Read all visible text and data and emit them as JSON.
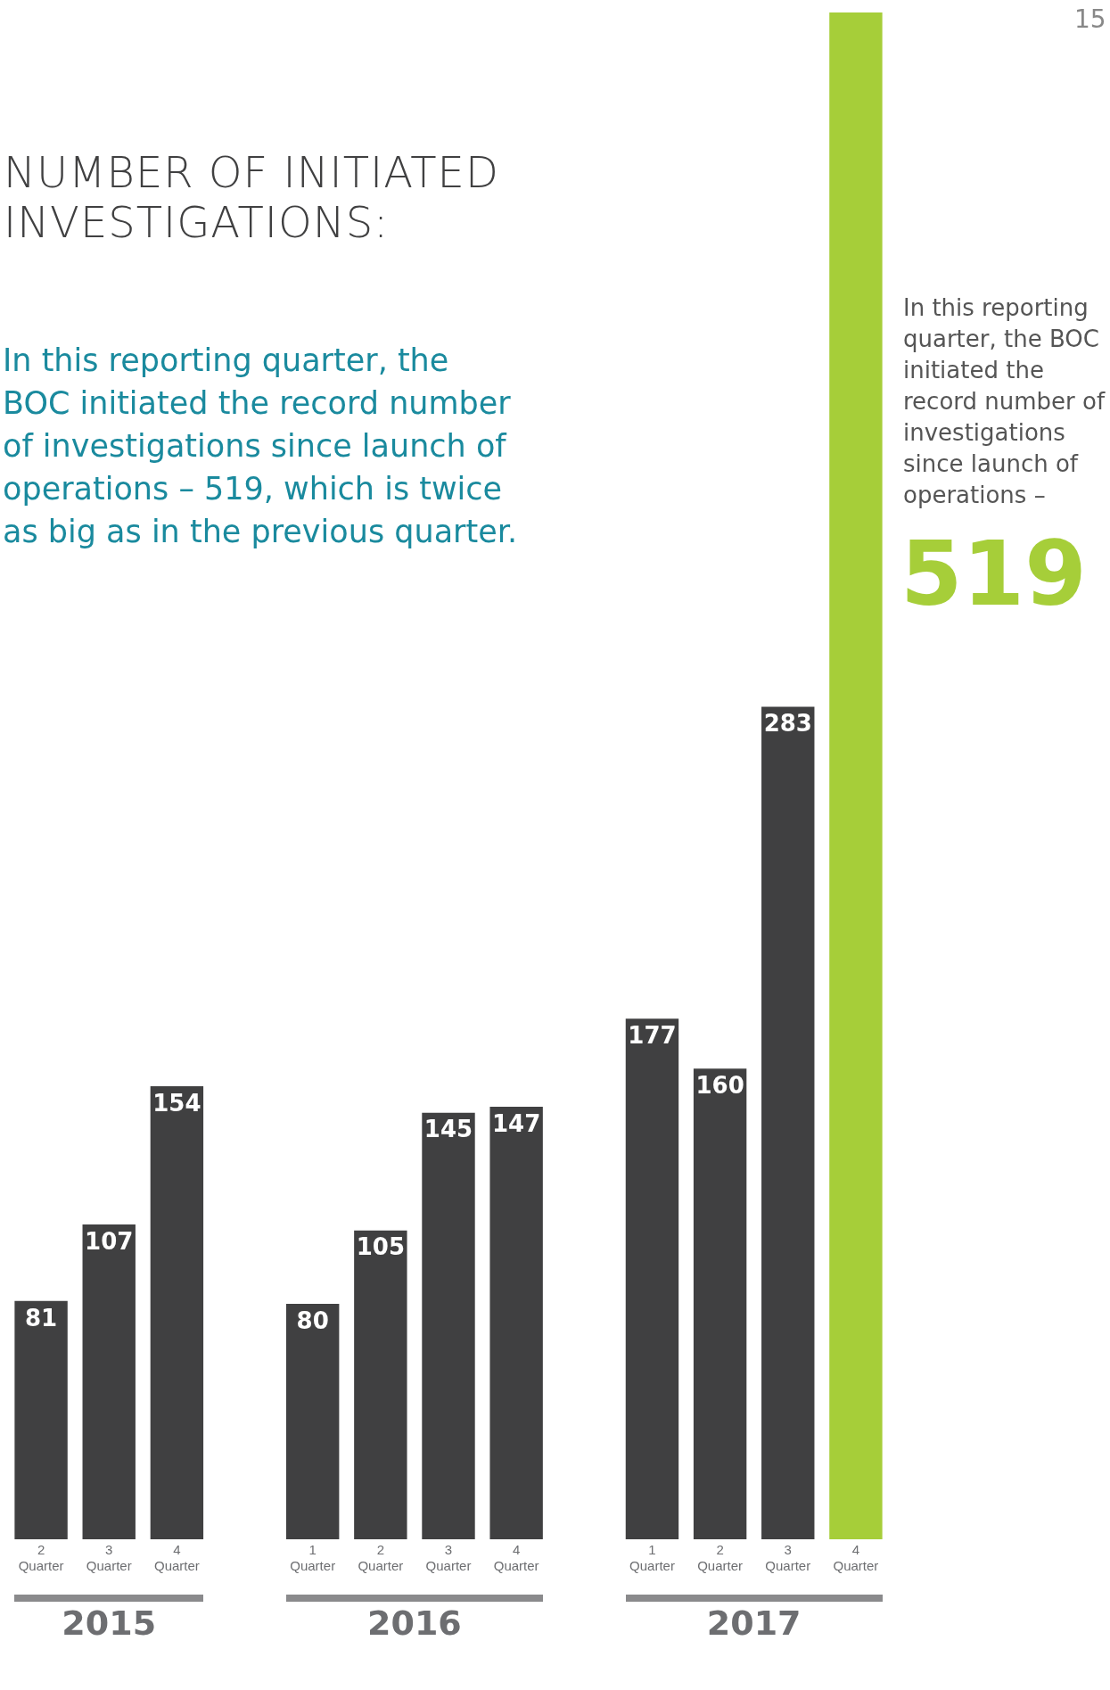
{
  "chart_data": {
    "type": "bar",
    "title": "NUMBER OF INITIATED INVESTIGATIONS:",
    "subtitle": "In this reporting quarter, the BOC initiated the record number of investigations since launch of operations – 519, which is twice as big as in the previous quarter.",
    "categories": [
      "2 Quarter",
      "3 Quarter",
      "4 Quarter",
      null,
      "1 Quarter",
      "2 Quarter",
      "3 Quarter",
      "4 Quarter",
      null,
      "1 Quarter",
      "2 Quarter",
      "3 Quarter",
      "4 Quarter"
    ],
    "values": [
      81,
      107,
      154,
      null,
      80,
      105,
      145,
      147,
      null,
      177,
      160,
      283,
      519
    ],
    "colors": [
      "#404041",
      "#404041",
      "#404041",
      "#404041",
      "#404041",
      "#404041",
      "#404041",
      "#404041",
      "#404041",
      "#404041",
      "#404041",
      "#404041",
      "#a6ce39"
    ],
    "value_labels": [
      "81",
      "107",
      "154",
      null,
      "80",
      "105",
      "145",
      "147",
      null,
      "177",
      "160",
      "283",
      null
    ],
    "annotations": [
      "2015",
      "2016",
      "2017",
      "In this reporting quarter, the BOC initiated the record number of investigations since launch of operations –",
      "519",
      "15"
    ],
    "legend": false,
    "grid": false
  }
}
